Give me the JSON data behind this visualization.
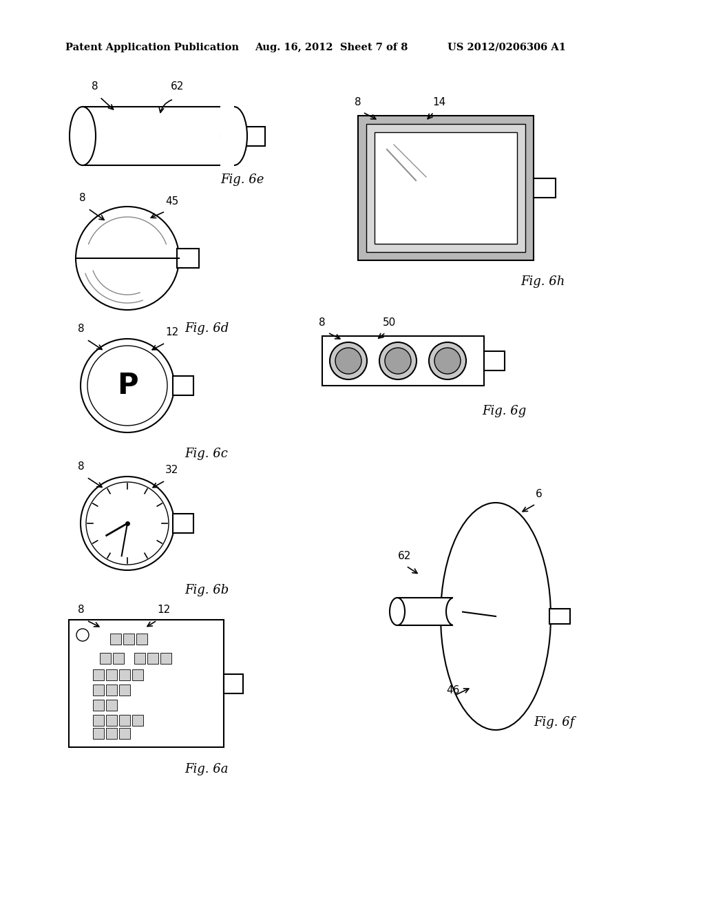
{
  "title_left": "Patent Application Publication",
  "title_mid": "Aug. 16, 2012  Sheet 7 of 8",
  "title_right": "US 2012/0206306 A1",
  "bg_color": "#ffffff",
  "line_color": "#000000",
  "fig_labels": {
    "6a": "Fig. 6a",
    "6b": "Fig. 6b",
    "6c": "Fig. 6c",
    "6d": "Fig. 6d",
    "6e": "Fig. 6e",
    "6f": "Fig. 6f",
    "6g": "Fig. 6g",
    "6h": "Fig. 6h"
  }
}
